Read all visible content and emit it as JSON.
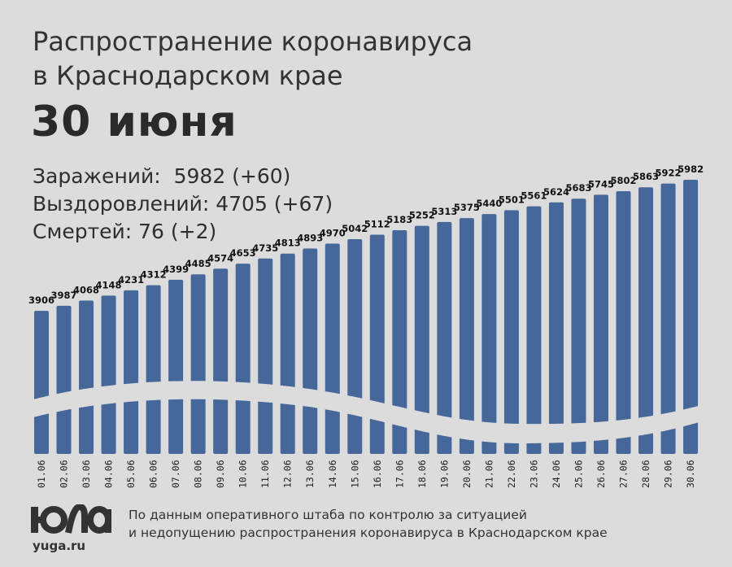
{
  "header": {
    "title_line1": "Распространение коронавируса",
    "title_line2": "в Краснодарском крае",
    "date": "30 июня"
  },
  "stats": {
    "infected": "Заражений:  5982 (+60)",
    "recovered": "Выздоровлений: 4705 (+67)",
    "deaths": "Смертей: 76 (+2)"
  },
  "footer": {
    "logo_text": "ЮГА",
    "site": "yuga.ru",
    "source_line1": "По данным оперативного штаба по контролю за ситуацией",
    "source_line2": "и недопущению распространения коронавируса в Краснодарском крае"
  },
  "colors": {
    "bar": "#45679a",
    "background": "#dcdcdc",
    "label": "#111111"
  },
  "chart_data": {
    "type": "bar",
    "title": "Распространение коронавируса в Краснодарском крае",
    "xlabel": "",
    "ylabel": "",
    "categories": [
      "01.06",
      "02.06",
      "03.06",
      "04.06",
      "05.06",
      "06.06",
      "07.06",
      "08.06",
      "09.06",
      "10.06",
      "11.06",
      "12.06",
      "13.06",
      "14.06",
      "15.06",
      "16.06",
      "17.06",
      "18.06",
      "19.06",
      "20.06",
      "21.06",
      "22.06",
      "23.06",
      "24.06",
      "25.06",
      "26.06",
      "27.06",
      "28.06",
      "29.06",
      "30.06"
    ],
    "values": [
      3906,
      3987,
      4068,
      4148,
      4231,
      4312,
      4399,
      4485,
      4574,
      4653,
      4735,
      4813,
      4893,
      4970,
      5042,
      5112,
      5183,
      5252,
      5313,
      5375,
      5440,
      5501,
      5561,
      5624,
      5683,
      5745,
      5802,
      5863,
      5922,
      5982
    ],
    "ylim": [
      1640,
      5982
    ],
    "grid": false,
    "legend": "none"
  }
}
